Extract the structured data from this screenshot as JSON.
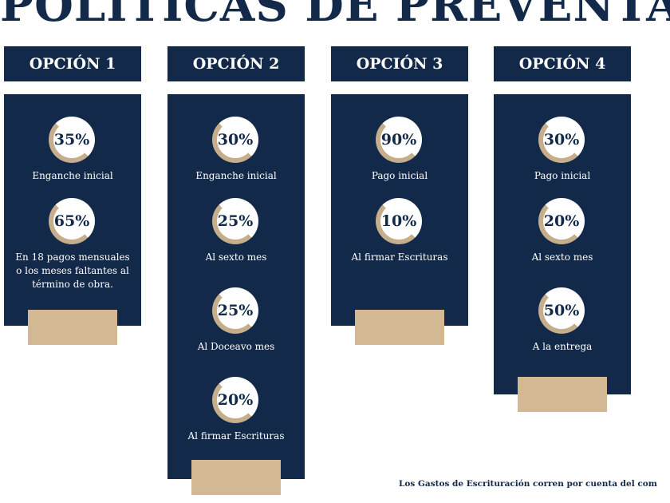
{
  "title": "POLÍTICAS DE PREVENTA",
  "options": [
    {
      "header": "OPCIÓN 1",
      "items": [
        {
          "percent": "35%",
          "label": "Enganche inicial"
        },
        {
          "percent": "65%",
          "label": "En 18 pagos mensuales o los meses faltantes al término de obra."
        }
      ]
    },
    {
      "header": "OPCIÓN 2",
      "items": [
        {
          "percent": "30%",
          "label": "Enganche inicial"
        },
        {
          "percent": "25%",
          "label": "Al sexto mes"
        },
        {
          "percent": "25%",
          "label": "Al Doceavo mes"
        },
        {
          "percent": "20%",
          "label": "Al firmar Escrituras"
        }
      ]
    },
    {
      "header": "OPCIÓN 3",
      "items": [
        {
          "percent": "90%",
          "label": "Pago inicial"
        },
        {
          "percent": "10%",
          "label": "Al firmar Escrituras"
        }
      ]
    },
    {
      "header": "OPCIÓN 4",
      "items": [
        {
          "percent": "30%",
          "label": "Pago inicial"
        },
        {
          "percent": "20%",
          "label": "Al sexto mes"
        },
        {
          "percent": "50%",
          "label": "A la entrega"
        }
      ]
    }
  ],
  "footer": "Los Gastos de Escrituración corren por cuenta del com",
  "colors": {
    "navy": "#13294a",
    "tan": "#d2b994",
    "ring": "#c6ae8c"
  }
}
